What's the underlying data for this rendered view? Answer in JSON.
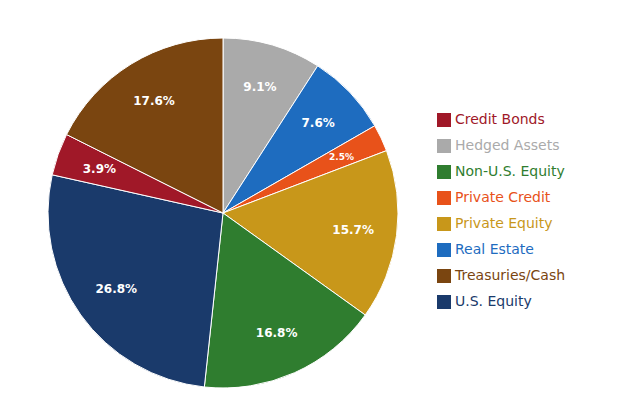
{
  "chart_data": {
    "type": "pie",
    "categories": [
      "Hedged Assets",
      "Real Estate",
      "Private Credit",
      "Private Equity",
      "Non-U.S. Equity",
      "U.S. Equity",
      "Credit Bonds",
      "Treasuries/Cash"
    ],
    "values": [
      9.1,
      7.6,
      2.5,
      15.7,
      16.8,
      26.8,
      3.9,
      17.6
    ],
    "colors": [
      "#aaaaaa",
      "#1e6cbf",
      "#e8521a",
      "#c8971a",
      "#2f7d2f",
      "#1a3a6b",
      "#a01828",
      "#7a4510"
    ],
    "data_labels": true,
    "value_labels": [
      "9.1%",
      "7.6%",
      "2.5%",
      "15.7%",
      "16.8%",
      "26.8%",
      "3.9%",
      "17.6%"
    ],
    "legend": "right"
  }
}
